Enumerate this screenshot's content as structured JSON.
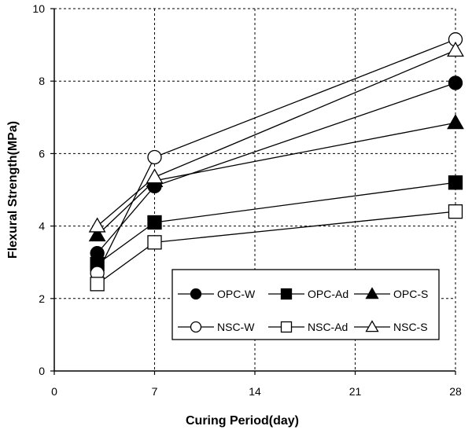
{
  "chart_data": {
    "type": "line",
    "title": "",
    "xlabel": "Curing Period(day)",
    "ylabel": "Flexural Strength(MPa)",
    "xlim": [
      0,
      28
    ],
    "ylim": [
      0,
      10
    ],
    "xticks": [
      "0",
      "7",
      "14",
      "21",
      "28"
    ],
    "yticks": [
      "0",
      "2",
      "4",
      "6",
      "8",
      "10"
    ],
    "grid": "dashed",
    "legend_position": "lower-right",
    "x": [
      3,
      7,
      28
    ],
    "series": [
      {
        "name": "OPC-W",
        "marker": "circle",
        "filled": true,
        "values": [
          3.25,
          5.1,
          7.95
        ]
      },
      {
        "name": "OPC-Ad",
        "marker": "square",
        "filled": true,
        "values": [
          2.95,
          4.1,
          5.2
        ]
      },
      {
        "name": "OPC-S",
        "marker": "triangle",
        "filled": true,
        "values": [
          3.75,
          5.25,
          6.85
        ]
      },
      {
        "name": "NSC-W",
        "marker": "circle",
        "filled": false,
        "values": [
          2.7,
          5.9,
          9.15
        ]
      },
      {
        "name": "NSC-Ad",
        "marker": "square",
        "filled": false,
        "values": [
          2.4,
          3.55,
          4.4
        ]
      },
      {
        "name": "NSC-S",
        "marker": "triangle",
        "filled": false,
        "values": [
          4.0,
          5.35,
          8.85
        ]
      }
    ]
  }
}
